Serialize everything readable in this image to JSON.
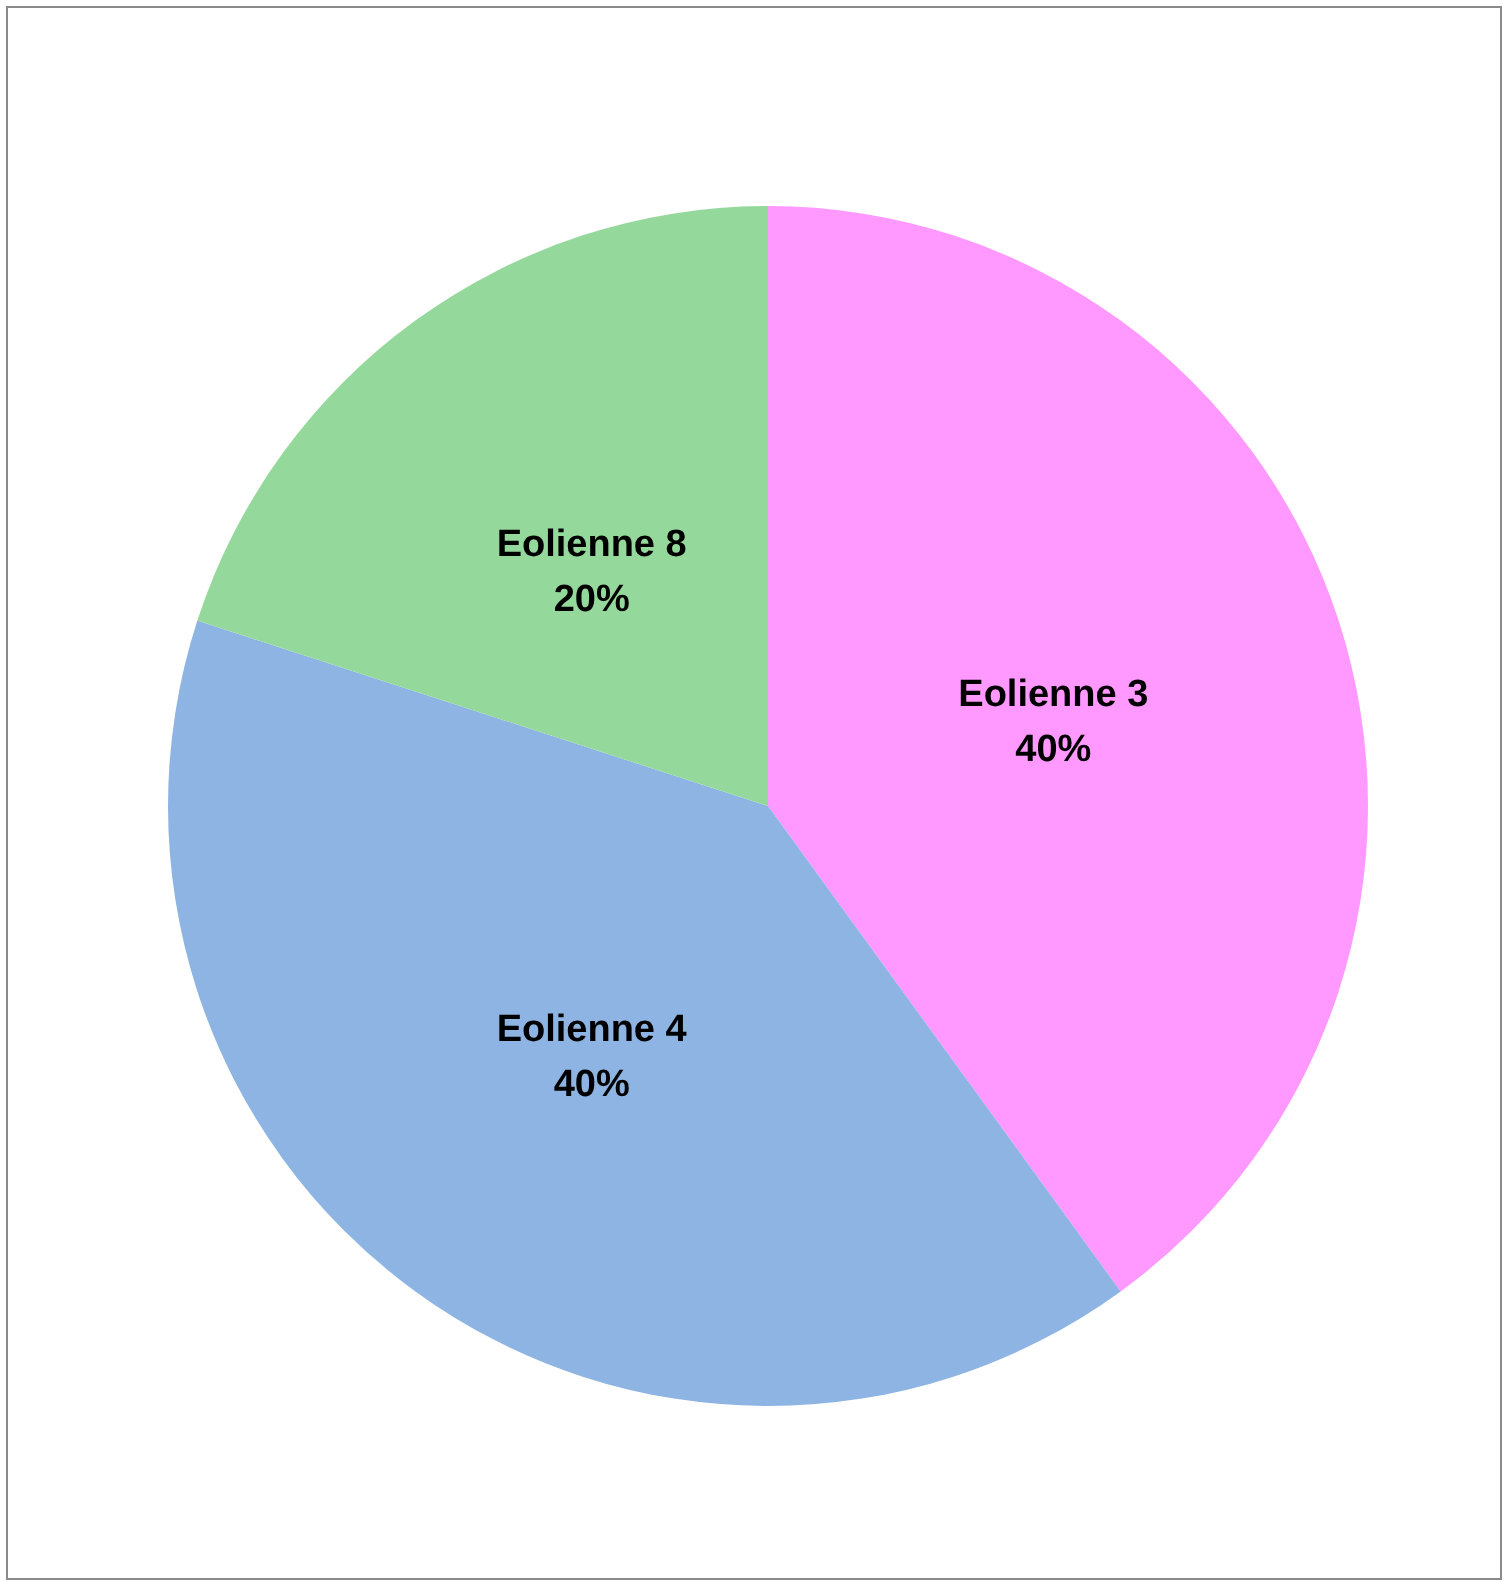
{
  "chart_data": {
    "type": "pie",
    "categories": [
      "Eolienne 3",
      "Eolienne 4",
      "Eolienne 8"
    ],
    "values": [
      40,
      40,
      20
    ],
    "colors": [
      "#ff99ff",
      "#8eb4e3",
      "#95d89c"
    ],
    "value_labels": [
      "40%",
      "40%",
      "20%"
    ],
    "legend": false
  }
}
